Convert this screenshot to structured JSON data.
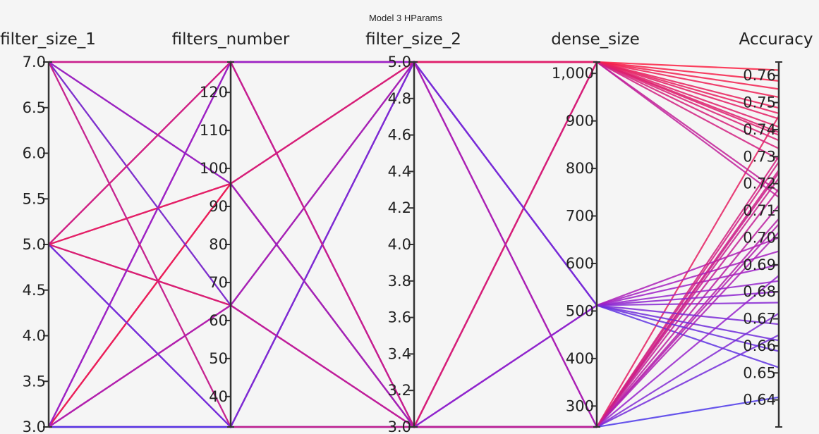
{
  "chart_data": {
    "type": "parallel_coordinates",
    "title": "Model 3 HParams",
    "colorscale": {
      "low": "#3a3cf0",
      "mid": "#a020c8",
      "high": "#ff1e3c",
      "range": [
        0.63,
        0.765
      ]
    },
    "dimensions": [
      {
        "name": "filter_size_1",
        "range": [
          3.0,
          7.0
        ],
        "ticks": [
          "3.0",
          "3.5",
          "4.0",
          "4.5",
          "5.0",
          "5.5",
          "6.0",
          "6.5",
          "7.0"
        ],
        "tick_values": [
          3.0,
          3.5,
          4.0,
          4.5,
          5.0,
          5.5,
          6.0,
          6.5,
          7.0
        ]
      },
      {
        "name": "filters_number",
        "range": [
          32,
          128
        ],
        "ticks": [
          "40",
          "50",
          "60",
          "70",
          "80",
          "90",
          "100",
          "110",
          "120"
        ],
        "tick_values": [
          40,
          50,
          60,
          70,
          80,
          90,
          100,
          110,
          120
        ]
      },
      {
        "name": "filter_size_2",
        "range": [
          3.0,
          5.0
        ],
        "ticks": [
          "3.0",
          "3.2",
          "3.4",
          "3.6",
          "3.8",
          "4.0",
          "4.2",
          "4.4",
          "4.6",
          "4.8",
          "5.0"
        ],
        "tick_values": [
          3.0,
          3.2,
          3.4,
          3.6,
          3.8,
          4.0,
          4.2,
          4.4,
          4.6,
          4.8,
          5.0
        ]
      },
      {
        "name": "dense_size",
        "range": [
          256,
          1024
        ],
        "ticks": [
          "300",
          "400",
          "500",
          "600",
          "700",
          "800",
          "900",
          "1,000"
        ],
        "tick_values": [
          300,
          400,
          500,
          600,
          700,
          800,
          900,
          1000
        ]
      },
      {
        "name": "Accuracy",
        "range": [
          0.63,
          0.765
        ],
        "ticks": [
          "0.64",
          "0.65",
          "0.66",
          "0.67",
          "0.68",
          "0.69",
          "0.70",
          "0.71",
          "0.72",
          "0.73",
          "0.74",
          "0.75",
          "0.76"
        ],
        "tick_values": [
          0.64,
          0.65,
          0.66,
          0.67,
          0.68,
          0.69,
          0.7,
          0.71,
          0.72,
          0.73,
          0.74,
          0.75,
          0.76
        ]
      }
    ],
    "traces": [
      [
        7,
        128,
        5,
        1024,
        0.762
      ],
      [
        7,
        128,
        5,
        1024,
        0.758
      ],
      [
        7,
        128,
        5,
        512,
        0.69
      ],
      [
        7,
        96,
        3,
        256,
        0.745
      ],
      [
        7,
        64,
        3,
        1024,
        0.736
      ],
      [
        7,
        32,
        5,
        512,
        0.676
      ],
      [
        7,
        128,
        3,
        256,
        0.725
      ],
      [
        7,
        96,
        5,
        1024,
        0.717
      ],
      [
        5,
        128,
        3,
        256,
        0.705
      ],
      [
        5,
        96,
        5,
        1024,
        0.741
      ],
      [
        5,
        64,
        3,
        512,
        0.7
      ],
      [
        5,
        32,
        5,
        256,
        0.664
      ],
      [
        5,
        128,
        5,
        1024,
        0.752
      ],
      [
        5,
        96,
        3,
        256,
        0.728
      ],
      [
        5,
        64,
        5,
        1024,
        0.733
      ],
      [
        5,
        32,
        3,
        512,
        0.652
      ],
      [
        5,
        64,
        3,
        1024,
        0.738
      ],
      [
        3,
        128,
        3,
        256,
        0.672
      ],
      [
        3,
        96,
        5,
        1024,
        0.748
      ],
      [
        3,
        64,
        5,
        1024,
        0.744
      ],
      [
        3,
        32,
        3,
        256,
        0.712
      ],
      [
        3,
        128,
        5,
        512,
        0.684
      ],
      [
        3,
        96,
        3,
        256,
        0.722
      ],
      [
        3,
        64,
        3,
        512,
        0.695
      ],
      [
        3,
        32,
        5,
        1024,
        0.739
      ],
      [
        3,
        32,
        3,
        256,
        0.707
      ],
      [
        3,
        96,
        5,
        256,
        0.73
      ],
      [
        3,
        128,
        3,
        1024,
        0.715
      ],
      [
        3,
        32,
        5,
        512,
        0.662
      ],
      [
        3,
        64,
        3,
        256,
        0.718
      ],
      [
        3,
        96,
        3,
        1024,
        0.755
      ],
      [
        3,
        32,
        3,
        256,
        0.641
      ],
      [
        7,
        64,
        5,
        512,
        0.658
      ],
      [
        5,
        96,
        3,
        1024,
        0.746
      ],
      [
        3,
        128,
        5,
        256,
        0.686
      ],
      [
        7,
        32,
        3,
        1024,
        0.729
      ],
      [
        5,
        32,
        5,
        512,
        0.668
      ],
      [
        3,
        64,
        5,
        256,
        0.702
      ],
      [
        7,
        96,
        3,
        512,
        0.68
      ],
      [
        5,
        128,
        3,
        256,
        0.724
      ]
    ]
  }
}
